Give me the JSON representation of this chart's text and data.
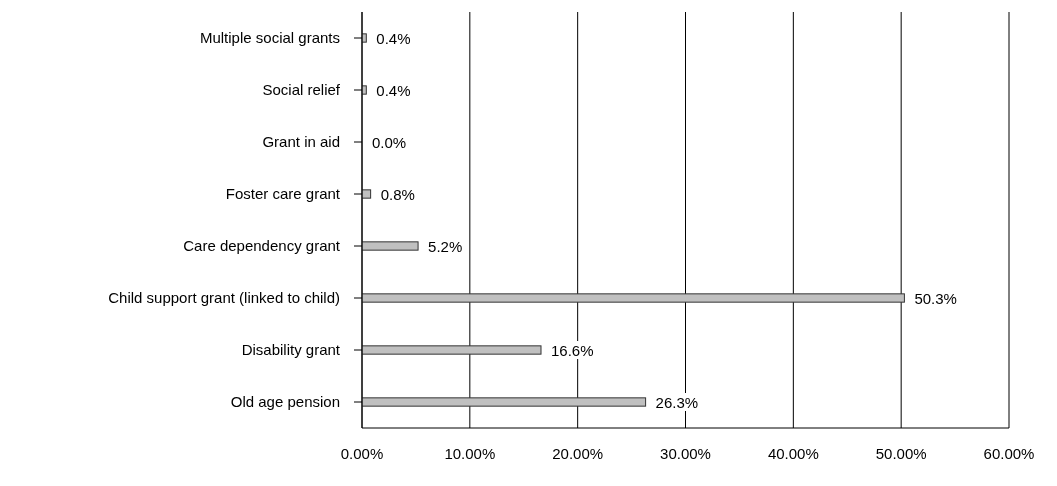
{
  "chart_data": {
    "type": "bar",
    "orientation": "horizontal",
    "categories": [
      "Multiple social grants",
      "Social relief",
      "Grant in aid",
      "Foster care grant",
      "Care dependency grant",
      "Child support grant (linked to child)",
      "Disability grant",
      "Old age pension"
    ],
    "values": [
      0.4,
      0.4,
      0.0,
      0.8,
      5.2,
      50.3,
      16.6,
      26.3
    ],
    "value_labels": [
      "0.4%",
      "0.4%",
      "0.0%",
      "0.8%",
      "5.2%",
      "50.3%",
      "16.6%",
      "26.3%"
    ],
    "color": "#c0c0c0",
    "xlim": [
      0,
      60
    ],
    "xticks": [
      {
        "value": 0,
        "label": "0.00%"
      },
      {
        "value": 10,
        "label": "10.00%"
      },
      {
        "value": 20,
        "label": "20.00%"
      },
      {
        "value": 30,
        "label": "30.00%"
      },
      {
        "value": 40,
        "label": "40.00%"
      },
      {
        "value": 50,
        "label": "50.00%"
      },
      {
        "value": 60,
        "label": "60.00%"
      }
    ],
    "grid": "x"
  }
}
